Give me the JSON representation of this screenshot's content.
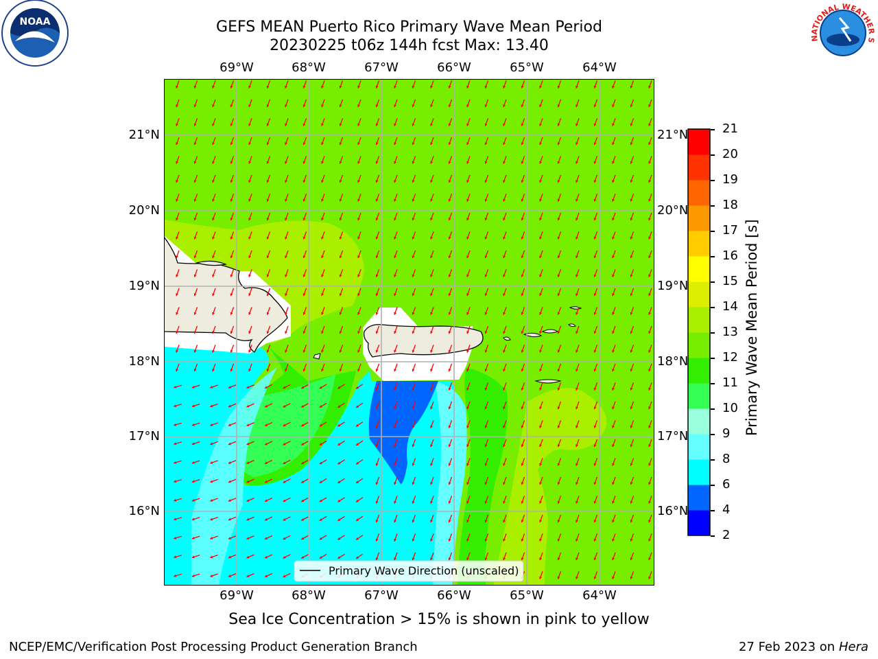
{
  "title_line1": "GEFS MEAN Puerto Rico Primary Wave Mean Period",
  "title_line2": "20230225 t06z 144h fcst   Max: 13.40",
  "lon_ticks": [
    "69°W",
    "68°W",
    "67°W",
    "66°W",
    "65°W",
    "64°W"
  ],
  "lat_ticks": [
    "21°N",
    "20°N",
    "19°N",
    "18°N",
    "17°N",
    "16°N"
  ],
  "legend_label": "Primary Wave Direction (unscaled)",
  "colorbar": {
    "label": "Primary Wave Mean Period [s]",
    "ticks": [
      "21",
      "20",
      "19",
      "18",
      "17",
      "16",
      "15",
      "14",
      "13",
      "12",
      "11",
      "10",
      "9",
      "8",
      "6",
      "4",
      "2"
    ],
    "colors": [
      "#0000ff",
      "#0066ff",
      "#00ffff",
      "#66ffff",
      "#99ffdd",
      "#33ff55",
      "#33ee00",
      "#77ee00",
      "#aaee00",
      "#ddee00",
      "#ffff00",
      "#ffcc00",
      "#ff9900",
      "#ff6600",
      "#ff3300",
      "#ff0000"
    ]
  },
  "caption": "Sea Ice Concentration > 15% is shown in pink to yellow",
  "footer_left": "NCEP/EMC/Verification Post Processing Product Generation Branch",
  "footer_date": "27 Feb 2023 on",
  "footer_machine": "Hera",
  "logos": {
    "noaa": "NOAA",
    "nws": "NATIONAL WEATHER SERVICE"
  },
  "arrow_color": "#ff0000",
  "land_color": "#eeecdf"
}
